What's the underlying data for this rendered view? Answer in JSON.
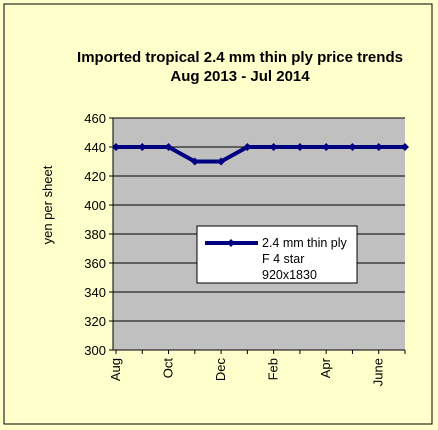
{
  "chart_data": {
    "type": "line",
    "title": "Imported tropical 2.4 mm thin ply price trends  Aug  2013 - Jul 2014",
    "y_label": "yen per sheet",
    "categories": [
      "Aug",
      null,
      "Oct",
      null,
      "Dec",
      null,
      "Feb",
      null,
      "Apr",
      null,
      "June",
      null
    ],
    "series": [
      {
        "name": "2.4 mm thin ply F 4 star 920x1830",
        "color": "#000080",
        "values": [
          440,
          440,
          440,
          430,
          430,
          440,
          440,
          440,
          440,
          440,
          440,
          440
        ]
      }
    ],
    "ylim": [
      300,
      460
    ],
    "yticks": [
      300,
      320,
      340,
      360,
      380,
      400,
      420,
      440,
      460
    ],
    "grid": true,
    "legend": "right"
  }
}
